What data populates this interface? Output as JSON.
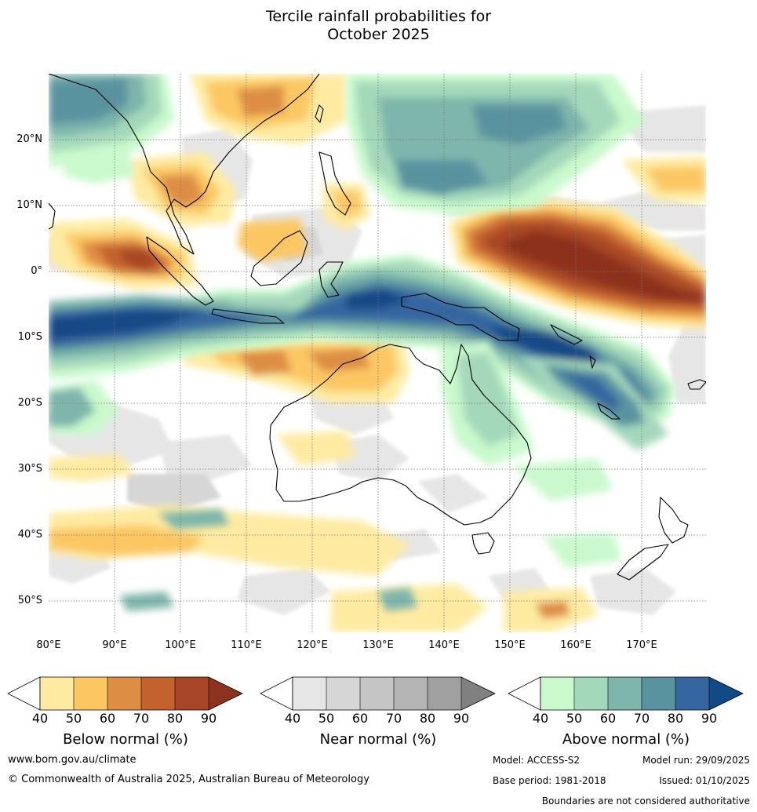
{
  "title_line1": "Tercile rainfall probabilities for",
  "title_line2": "October 2025",
  "lat_labels": [
    "20°N",
    "10°N",
    "0°",
    "10°S",
    "20°S",
    "30°S",
    "40°S",
    "50°S"
  ],
  "lon_labels": [
    "80°E",
    "90°E",
    "100°E",
    "110°E",
    "120°E",
    "130°E",
    "140°E",
    "150°E",
    "160°E",
    "170°E"
  ],
  "legend": {
    "ticks": [
      "40",
      "50",
      "60",
      "70",
      "80",
      "90"
    ],
    "below": {
      "label": "Below normal (%)",
      "colors": [
        "#ffffff",
        "#feeba1",
        "#fcc763",
        "#dd8e44",
        "#c4622e",
        "#a74626",
        "#8c331f"
      ]
    },
    "near": {
      "label": "Near normal (%)",
      "colors": [
        "#ffffff",
        "#e6e6e6",
        "#d6d6d6",
        "#c5c5c5",
        "#b4b4b4",
        "#a0a0a0",
        "#808080"
      ]
    },
    "above": {
      "label": "Above normal (%)",
      "colors": [
        "#ffffff",
        "#c9f9cc",
        "#a4d8bb",
        "#7eb5ac",
        "#5a93a0",
        "#3666a0",
        "#124a85"
      ]
    }
  },
  "footer": {
    "website": "www.bom.gov.au/climate",
    "copyright": "© Commonwealth of Australia 2025, Australian Bureau of Meteorology",
    "model": "Model: ACCESS-S2",
    "model_run": "Model run: 29/09/2025",
    "base_period": "Base period: 1981-2018",
    "issued": "Issued: 01/10/2025",
    "disclaimer": "Boundaries are not considered authoritative"
  }
}
